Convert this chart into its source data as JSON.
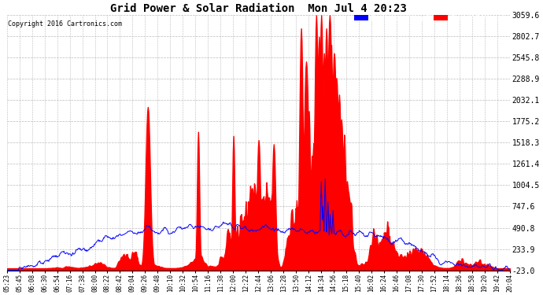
{
  "title": "Grid Power & Solar Radiation  Mon Jul 4 20:23",
  "copyright": "Copyright 2016 Cartronics.com",
  "y_ticks": [
    -23.0,
    233.9,
    490.8,
    747.6,
    1004.5,
    1261.4,
    1518.3,
    1775.2,
    2032.1,
    2288.9,
    2545.8,
    2802.7,
    3059.6
  ],
  "y_min": -23.0,
  "y_max": 3059.6,
  "bg_color": "#ffffff",
  "grid_color": "#bbbbbb",
  "radiation_color": "#ff0000",
  "grid_power_color": "#0000ff",
  "legend_radiation_bg": "#0000ff",
  "legend_grid_bg": "#ff0000",
  "x_labels": [
    "05:23",
    "05:45",
    "06:08",
    "06:30",
    "06:54",
    "07:16",
    "07:38",
    "08:00",
    "08:22",
    "08:42",
    "09:04",
    "09:26",
    "09:48",
    "10:10",
    "10:32",
    "10:54",
    "11:16",
    "11:38",
    "12:00",
    "12:22",
    "12:44",
    "13:06",
    "13:28",
    "13:50",
    "14:12",
    "14:34",
    "14:56",
    "15:18",
    "15:40",
    "16:02",
    "16:24",
    "16:46",
    "17:08",
    "17:30",
    "17:52",
    "18:14",
    "18:36",
    "18:58",
    "19:20",
    "19:42",
    "20:04"
  ]
}
